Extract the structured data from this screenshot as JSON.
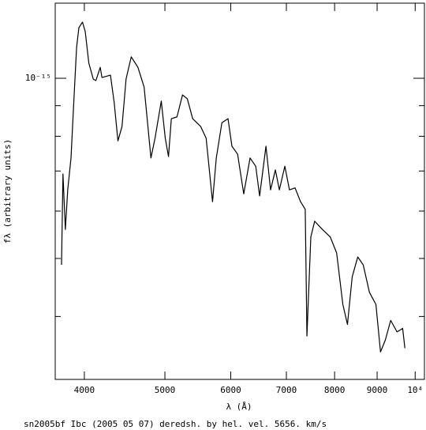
{
  "chart_data": {
    "type": "line",
    "x_label": "λ (Å)",
    "y_label": "fλ (arbitrary units)",
    "caption": "sn2005bf Ibc (2005 05 07) deredsh. by hel. vel.  5656. km/s",
    "xscale": "log",
    "yscale": "log",
    "xlim": [
      3690,
      10260
    ],
    "ylim": [
      3.14e-16,
      1.335e-15
    ],
    "xticks": [
      4000,
      5000,
      6000,
      7000,
      8000,
      9000,
      {
        "value": 10000,
        "label": "10⁴"
      }
    ],
    "yticks": [
      {
        "value": 1e-15,
        "label": "10⁻¹⁵"
      }
    ],
    "yminorticks": [
      4e-16,
      5e-16,
      6e-16,
      7e-16,
      8e-16,
      9e-16
    ],
    "color": "#000000",
    "x": [
      3755,
      3770,
      3795,
      3820,
      3855,
      3880,
      3915,
      3940,
      3980,
      4010,
      4050,
      4100,
      4130,
      4180,
      4200,
      4300,
      4345,
      4390,
      4440,
      4490,
      4555,
      4640,
      4720,
      4770,
      4810,
      4865,
      4950,
      5005,
      5050,
      5090,
      5170,
      5250,
      5320,
      5400,
      5520,
      5605,
      5705,
      5765,
      5855,
      5955,
      6020,
      6115,
      6220,
      6330,
      6430,
      6500,
      6615,
      6700,
      6790,
      6865,
      6970,
      7060,
      7170,
      7280,
      7375,
      7410,
      7490,
      7570,
      7735,
      7905,
      8045,
      8185,
      8290,
      8400,
      8530,
      8660,
      8810,
      8970,
      9085,
      9205,
      9345,
      9510,
      9660,
      9720
    ],
    "values": [
      4.88e-16,
      6.92e-16,
      5.59e-16,
      6.51e-16,
      7.36e-16,
      8.83e-16,
      1.126e-15,
      1.215e-15,
      1.241e-15,
      1.196e-15,
      1.06e-15,
      9.97e-16,
      9.91e-16,
      1.043e-15,
      1.003e-15,
      1.012e-15,
      9.1e-16,
      7.86e-16,
      8.31e-16,
      9.97e-16,
      1.086e-15,
      1.043e-15,
      9.67e-16,
      8.31e-16,
      7.36e-16,
      7.94e-16,
      9.16e-16,
      7.94e-16,
      7.4e-16,
      8.56e-16,
      8.62e-16,
      9.38e-16,
      9.24e-16,
      8.56e-16,
      8.31e-16,
      7.94e-16,
      6.22e-16,
      7.36e-16,
      8.43e-16,
      8.56e-16,
      7.7e-16,
      7.47e-16,
      6.41e-16,
      7.36e-16,
      7.13e-16,
      6.36e-16,
      7.7e-16,
      6.51e-16,
      7.03e-16,
      6.51e-16,
      7.13e-16,
      6.51e-16,
      6.56e-16,
      6.22e-16,
      6.04e-16,
      3.71e-16,
      5.43e-16,
      5.77e-16,
      5.59e-16,
      5.43e-16,
      5.11e-16,
      4.19e-16,
      3.88e-16,
      4.66e-16,
      5.03e-16,
      4.88e-16,
      4.39e-16,
      4.19e-16,
      3.49e-16,
      3.65e-16,
      3.94e-16,
      3.77e-16,
      3.82e-16,
      3.54e-16
    ]
  }
}
